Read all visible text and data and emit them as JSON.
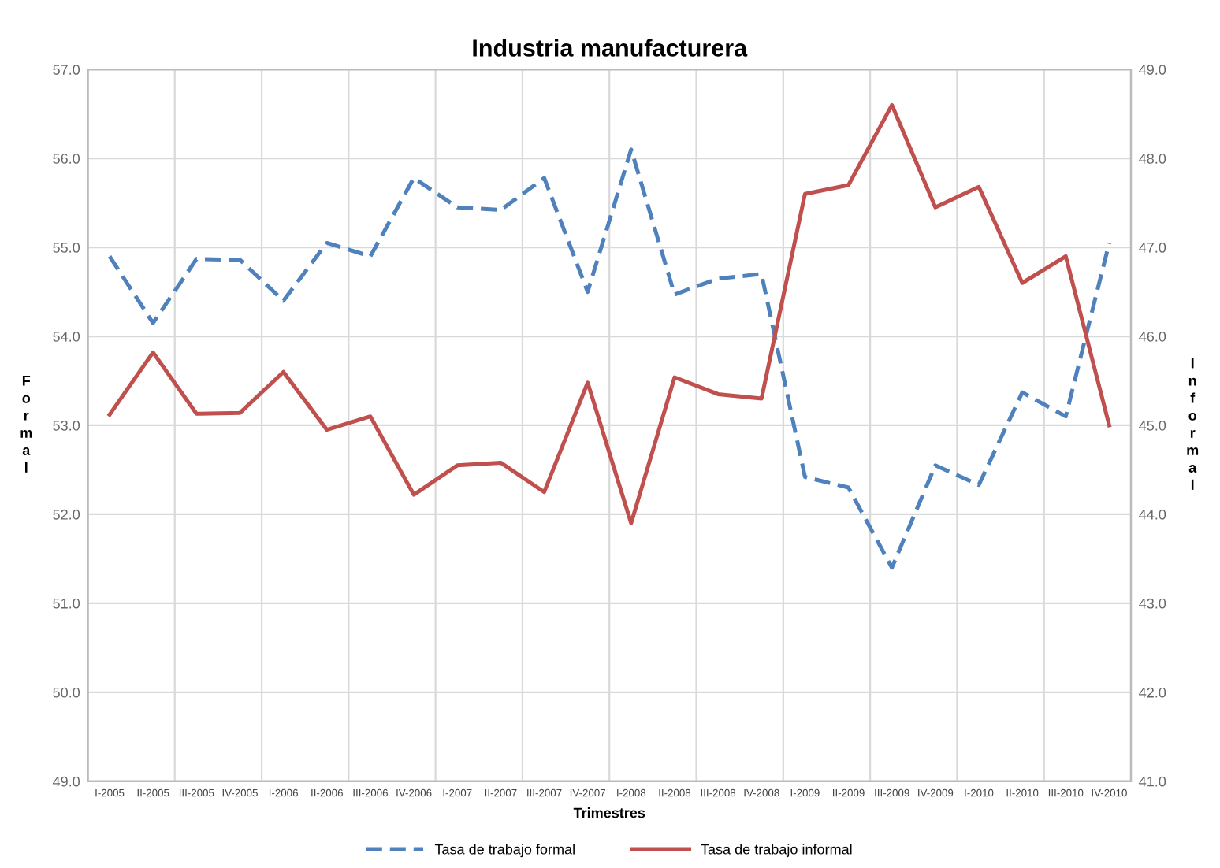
{
  "chart_data": {
    "type": "line",
    "title": "Industria manufacturera",
    "xlabel": "Trimestres",
    "ylabel": "Formal",
    "y2label": "Informal",
    "categories": [
      "I-2005",
      "II-2005",
      "III-2005",
      "IV-2005",
      "I-2006",
      "II-2006",
      "III-2006",
      "IV-2006",
      "I-2007",
      "II-2007",
      "III-2007",
      "IV-2007",
      "I-2008",
      "II-2008",
      "III-2008",
      "IV-2008",
      "I-2009",
      "II-2009",
      "III-2009",
      "IV-2009",
      "I-2010",
      "II-2010",
      "III-2010",
      "IV-2010"
    ],
    "series": [
      {
        "name": "Tasa de trabajo formal",
        "color": "#4f81bd",
        "line_style": "dashed",
        "values": [
          54.9,
          54.15,
          54.87,
          54.86,
          54.4,
          55.05,
          54.9,
          55.78,
          55.45,
          55.42,
          55.78,
          54.5,
          56.1,
          54.47,
          54.65,
          54.7,
          52.42,
          52.3,
          51.4,
          52.55,
          52.33,
          53.37,
          53.1,
          55.05
        ]
      },
      {
        "name": "Tasa de trabajo informal",
        "color": "#c0504d",
        "line_style": "solid",
        "axis": "y2",
        "values": [
          45.12,
          45.82,
          45.13,
          45.14,
          45.6,
          44.95,
          45.1,
          44.22,
          44.55,
          44.58,
          44.25,
          45.48,
          43.9,
          45.54,
          45.35,
          45.3,
          47.6,
          47.7,
          48.6,
          47.45,
          47.68,
          46.6,
          46.9,
          45.0
        ]
      }
    ],
    "ylim": [
      49.0,
      57.0
    ],
    "yticks": [
      {
        "value": 49,
        "label": "49.0"
      },
      {
        "value": 50,
        "label": "50.0"
      },
      {
        "value": 51,
        "label": "51.0"
      },
      {
        "value": 52,
        "label": "52.0"
      },
      {
        "value": 53,
        "label": "53.0"
      },
      {
        "value": 54,
        "label": "54.0"
      },
      {
        "value": 55,
        "label": "55.0"
      },
      {
        "value": 56,
        "label": "56.0"
      },
      {
        "value": 57,
        "label": "57.0"
      }
    ],
    "y2lim": [
      41.0,
      49.0
    ],
    "y2ticks": [
      {
        "value": 41,
        "label": "41.0"
      },
      {
        "value": 42,
        "label": "42.0"
      },
      {
        "value": 43,
        "label": "43.0"
      },
      {
        "value": 44,
        "label": "44.0"
      },
      {
        "value": 45,
        "label": "45.0"
      },
      {
        "value": 46,
        "label": "46.0"
      },
      {
        "value": 47,
        "label": "47.0"
      },
      {
        "value": 48,
        "label": "48.0"
      },
      {
        "value": 49,
        "label": "49.0"
      }
    ],
    "grid": true,
    "legend": "bottom",
    "marker": "none"
  }
}
